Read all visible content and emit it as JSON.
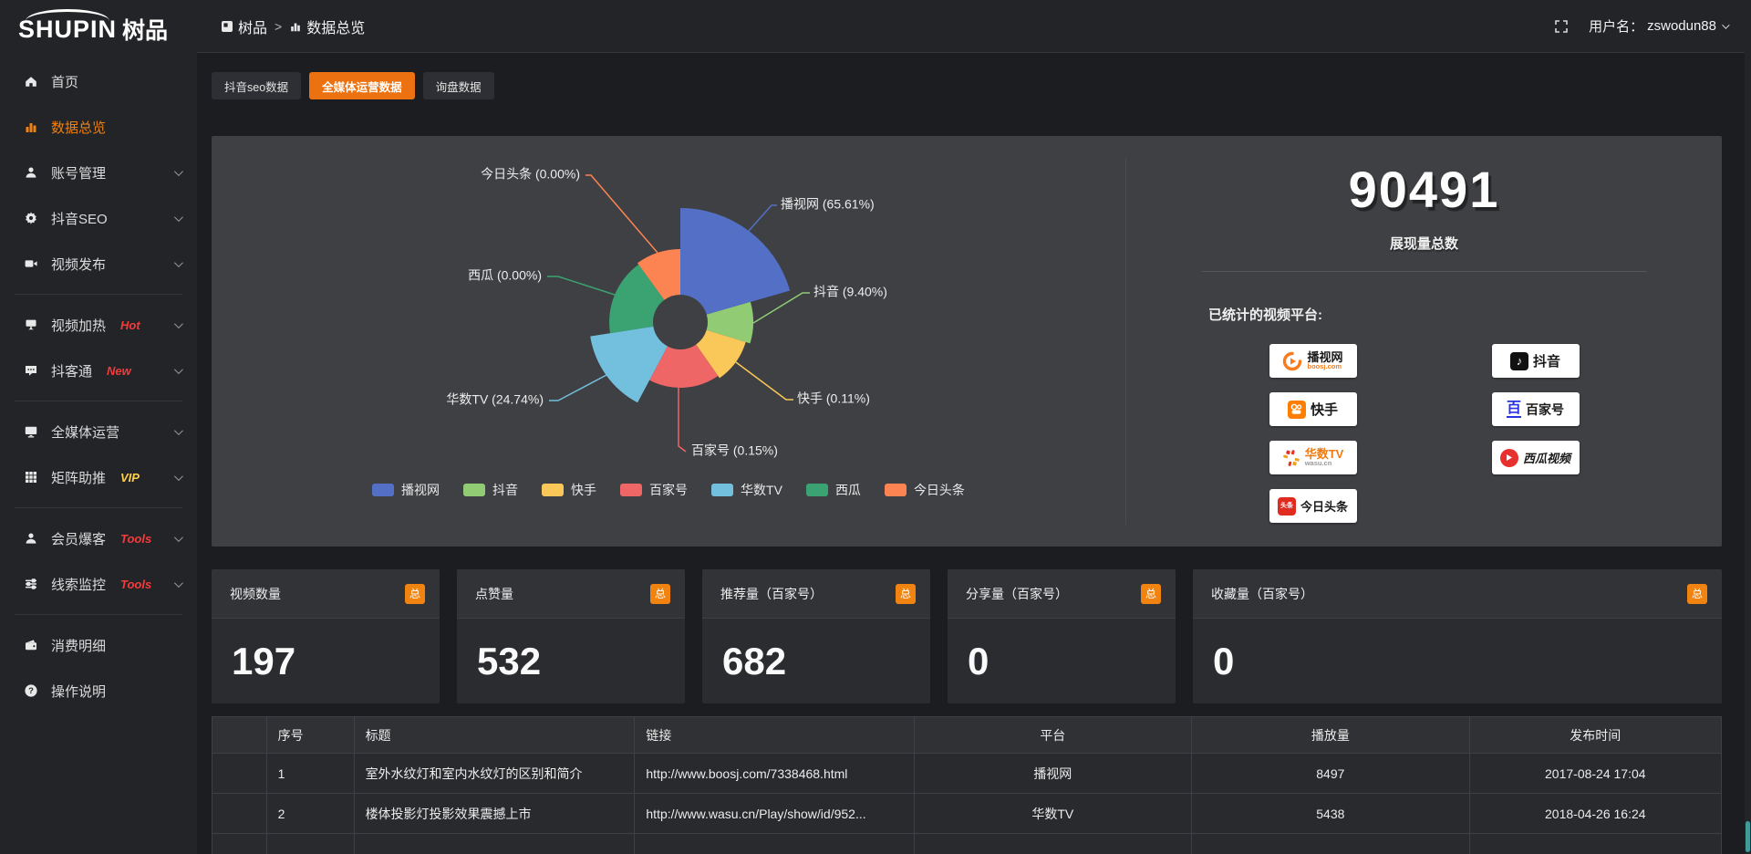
{
  "logo": {
    "brand_en": "SHUPIN",
    "brand_cn": "树品"
  },
  "topbar": {
    "breadcrumb_root": "树品",
    "breadcrumb_sep": ">",
    "breadcrumb_current": "数据总览",
    "username_label": "用户名：",
    "username": "zswodun88"
  },
  "sidebar": {
    "items": [
      {
        "key": "home",
        "icon": "home",
        "label": "首页"
      },
      {
        "key": "data-overview",
        "icon": "chart",
        "label": "数据总览",
        "active": true
      },
      {
        "key": "account-manage",
        "icon": "user",
        "label": "账号管理",
        "arrow": true
      },
      {
        "key": "douyin-seo",
        "icon": "gear",
        "label": "抖音SEO",
        "arrow": true
      },
      {
        "key": "video-publish",
        "icon": "video",
        "label": "视频发布",
        "arrow": true
      },
      {
        "divider": true
      },
      {
        "key": "video-heat",
        "icon": "heat",
        "label": "视频加热",
        "badge": "Hot",
        "badge_color": "#f43b3b",
        "arrow": true
      },
      {
        "key": "doukotong",
        "icon": "chat",
        "label": "抖客通",
        "badge": "New",
        "badge_color": "#f43b3b",
        "arrow": true
      },
      {
        "divider": true
      },
      {
        "key": "media-ops",
        "icon": "monitor",
        "label": "全媒体运营",
        "arrow": true
      },
      {
        "key": "matrix-boost",
        "icon": "grid",
        "label": "矩阵助推",
        "badge": "VIP",
        "badge_color": "#ffd04a",
        "arrow": true
      },
      {
        "divider": true
      },
      {
        "key": "member-baoke",
        "icon": "member",
        "label": "会员爆客",
        "badge": "Tools",
        "badge_color": "#f43b3b",
        "arrow": true
      },
      {
        "key": "clue-monitor",
        "icon": "sliders",
        "label": "线索监控",
        "badge": "Tools",
        "badge_color": "#f43b3b",
        "arrow": true
      },
      {
        "divider": true
      },
      {
        "key": "consumption",
        "icon": "wallet",
        "label": "消费明细"
      },
      {
        "key": "help",
        "icon": "question",
        "label": "操作说明"
      }
    ]
  },
  "tabs": [
    {
      "key": "douyin-seo-data",
      "label": "抖音seo数据",
      "active": false
    },
    {
      "key": "media-ops-data",
      "label": "全媒体运营数据",
      "active": true
    },
    {
      "key": "inquiry-data",
      "label": "询盘数据",
      "active": false
    }
  ],
  "chart_data": {
    "type": "pie",
    "variant": "nightingale-rose",
    "title": "",
    "legend_position": "bottom",
    "center": [
      514,
      204
    ],
    "hole_radius": 30,
    "categories": [
      "播视网",
      "抖音",
      "快手",
      "百家号",
      "华数TV",
      "西瓜",
      "今日头条"
    ],
    "values_pct": [
      65.61,
      9.4,
      0.11,
      0.15,
      24.74,
      0.0,
      0.0
    ],
    "slices": [
      {
        "name": "播视网",
        "pct": 65.61,
        "label": "播视网 (65.61%)",
        "color": "#5470c6",
        "start": 0,
        "end": 74,
        "r": 125,
        "label_pos": [
          624,
          76
        ],
        "anchor": "start",
        "line": [
          [
            589,
            104
          ],
          [
            614,
            76
          ],
          [
            620,
            76
          ]
        ]
      },
      {
        "name": "抖音",
        "pct": 9.4,
        "label": "抖音 (9.40%)",
        "color": "#91cc75",
        "start": 74,
        "end": 107,
        "r": 80,
        "label_pos": [
          660,
          172
        ],
        "anchor": "start",
        "line": [
          [
            594,
            205
          ],
          [
            648,
            172
          ],
          [
            656,
            172
          ]
        ]
      },
      {
        "name": "快手",
        "pct": 0.11,
        "label": "快手 (0.11%)",
        "color": "#fac858",
        "start": 107,
        "end": 145,
        "r": 75,
        "label_pos": [
          642,
          289
        ],
        "anchor": "start",
        "line": [
          [
            575,
            248
          ],
          [
            630,
            289
          ],
          [
            638,
            289
          ]
        ]
      },
      {
        "name": "百家号",
        "pct": 0.15,
        "label": "百家号 (0.15%)",
        "color": "#ee6666",
        "start": 145,
        "end": 208,
        "r": 72,
        "label_pos": [
          526,
          346
        ],
        "anchor": "start",
        "line": [
          [
            512,
            274
          ],
          [
            512,
            340
          ],
          [
            520,
            346
          ]
        ]
      },
      {
        "name": "华数TV",
        "pct": 24.74,
        "label": "华数TV (24.74%)",
        "color": "#73c0de",
        "start": 208,
        "end": 261,
        "r": 100,
        "label_pos": [
          364,
          290
        ],
        "anchor": "end",
        "line": [
          [
            433,
            262
          ],
          [
            380,
            290
          ],
          [
            370,
            290
          ]
        ]
      },
      {
        "name": "西瓜",
        "pct": 0.0,
        "label": "西瓜 (0.00%)",
        "color": "#3ba272",
        "start": 261,
        "end": 324,
        "r": 78,
        "label_pos": [
          362,
          154
        ],
        "anchor": "end",
        "line": [
          [
            442,
            174
          ],
          [
            380,
            154
          ],
          [
            368,
            154
          ]
        ]
      },
      {
        "name": "今日头条",
        "pct": 0.0,
        "label": "今日头条 (0.00%)",
        "color": "#fc8452",
        "start": 324,
        "end": 360,
        "r": 80,
        "label_pos": [
          404,
          43
        ],
        "anchor": "end",
        "line": [
          [
            489,
            128
          ],
          [
            416,
            43
          ],
          [
            410,
            43
          ]
        ]
      }
    ]
  },
  "summary": {
    "total_value": "90491",
    "total_label": "展现量总数",
    "platforms_title": "已统计的视频平台:",
    "platforms": [
      {
        "name": "播视网",
        "sub": "boosj.com",
        "style": "boosj"
      },
      {
        "name": "抖音",
        "style": "douyin"
      },
      {
        "name": "快手",
        "style": "kuaishou"
      },
      {
        "name": "百家号",
        "style": "baijia"
      },
      {
        "name": "华数TV",
        "sub": "wasu.cn",
        "style": "wasu"
      },
      {
        "name": "西瓜视频",
        "style": "xigua"
      },
      {
        "name": "今日头条",
        "style": "toutiao"
      }
    ]
  },
  "stat_cards": {
    "badge": "总",
    "cards": [
      {
        "label": "视频数量",
        "value": "197"
      },
      {
        "label": "点赞量",
        "value": "532"
      },
      {
        "label": "推荐量（百家号）",
        "value": "682"
      },
      {
        "label": "分享量（百家号）",
        "value": "0"
      },
      {
        "label": "收藏量（百家号）",
        "value": "0",
        "wide": true
      }
    ]
  },
  "table": {
    "headers": [
      "序号",
      "标题",
      "链接",
      "平台",
      "播放量",
      "发布时间"
    ],
    "rows": [
      {
        "num": "1",
        "title": "室外水纹灯和室内水纹灯的区别和简介",
        "link": "http://www.boosj.com/7338468.html",
        "platform": "播视网",
        "plays": "8497",
        "time": "2017-08-24 17:04"
      },
      {
        "num": "2",
        "title": "楼体投影灯投影效果震撼上市",
        "link": "http://www.wasu.cn/Play/show/id/952...",
        "platform": "华数TV",
        "plays": "5438",
        "time": "2018-04-26 16:24"
      },
      {
        "num": "",
        "title": "",
        "link": "",
        "platform": "",
        "plays": "",
        "time": ""
      }
    ]
  }
}
